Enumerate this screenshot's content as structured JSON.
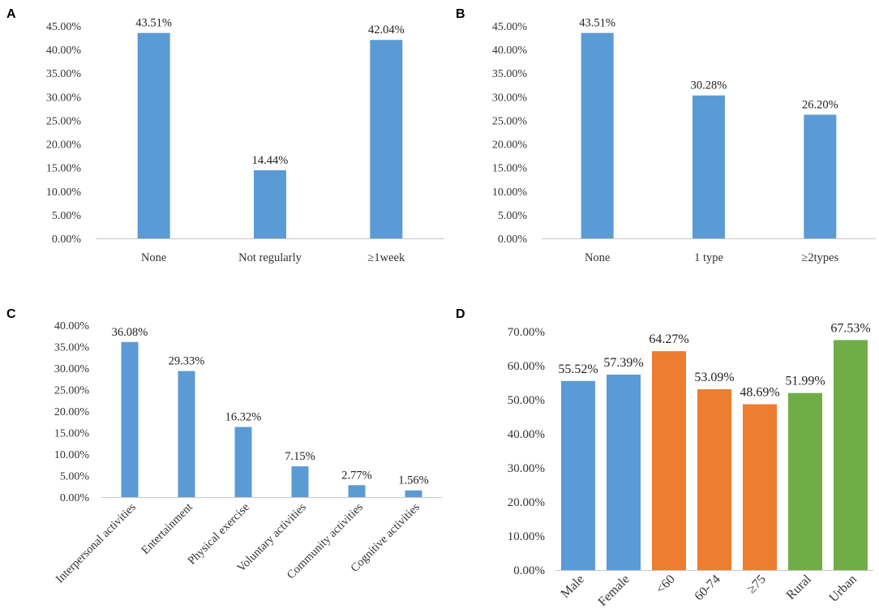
{
  "chart_data": [
    {
      "panel": "A",
      "type": "bar",
      "categories": [
        "None",
        "Not regularly",
        "≥1week"
      ],
      "values": [
        43.51,
        14.44,
        42.04
      ],
      "data_labels": [
        "43.51%",
        "14.44%",
        "42.04%"
      ],
      "y_ticks": [
        "0.00%",
        "5.00%",
        "10.00%",
        "15.00%",
        "20.00%",
        "25.00%",
        "30.00%",
        "35.00%",
        "40.00%",
        "45.00%"
      ],
      "ylim": [
        0,
        45
      ],
      "color": "#5b9bd5",
      "grid": false
    },
    {
      "panel": "B",
      "type": "bar",
      "categories": [
        "None",
        "1 type",
        "≥2types"
      ],
      "values": [
        43.51,
        30.28,
        26.2
      ],
      "data_labels": [
        "43.51%",
        "30.28%",
        "26.20%"
      ],
      "y_ticks": [
        "0.00%",
        "5.00%",
        "10.00%",
        "15.00%",
        "20.00%",
        "25.00%",
        "30.00%",
        "35.00%",
        "40.00%",
        "45.00%"
      ],
      "ylim": [
        0,
        45
      ],
      "color": "#5b9bd5",
      "grid": false
    },
    {
      "panel": "C",
      "type": "bar",
      "categories": [
        "Interpersonal activities",
        "Entertainment",
        "Physical exercise",
        "Voluntary activities",
        "Community activities",
        "Cognitive activities"
      ],
      "values": [
        36.08,
        29.33,
        16.32,
        7.15,
        2.77,
        1.56
      ],
      "data_labels": [
        "36.08%",
        "29.33%",
        "16.32%",
        "7.15%",
        "2.77%",
        "1.56%"
      ],
      "y_ticks": [
        "0.00%",
        "5.00%",
        "10.00%",
        "15.00%",
        "20.00%",
        "25.00%",
        "30.00%",
        "35.00%",
        "40.00%"
      ],
      "ylim": [
        0,
        40
      ],
      "color": "#5b9bd5",
      "grid": false
    },
    {
      "panel": "D",
      "type": "bar",
      "categories": [
        "Male",
        "Female",
        "<60",
        "60-74",
        "≥75",
        "Rural",
        "Urban"
      ],
      "values": [
        55.52,
        57.39,
        64.27,
        53.09,
        48.69,
        51.99,
        67.53
      ],
      "data_labels": [
        "55.52%",
        "57.39%",
        "64.27%",
        "53.09%",
        "48.69%",
        "51.99%",
        "67.53%"
      ],
      "colors": [
        "#5b9bd5",
        "#5b9bd5",
        "#ed7d31",
        "#ed7d31",
        "#ed7d31",
        "#70ad47",
        "#70ad47"
      ],
      "y_ticks": [
        "0.00%",
        "10.00%",
        "20.00%",
        "30.00%",
        "40.00%",
        "50.00%",
        "60.00%",
        "70.00%"
      ],
      "ylim": [
        0,
        70
      ],
      "grid": false
    }
  ]
}
